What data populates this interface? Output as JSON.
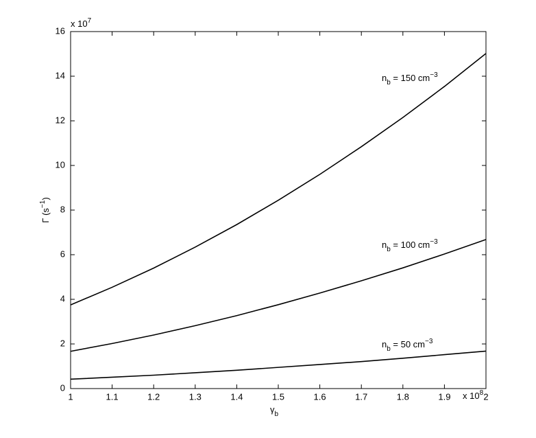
{
  "chart_data": {
    "type": "line",
    "x_label": {
      "base": "γ",
      "sub": "b"
    },
    "y_label": {
      "base": "Γ (s",
      "sup": "−1",
      "end": ")"
    },
    "x_exponent": {
      "text": "x 10",
      "sup": "8"
    },
    "y_exponent": {
      "text": "x 10",
      "sup": "7"
    },
    "x": [
      1,
      1.1,
      1.2,
      1.3,
      1.4,
      1.5,
      1.6,
      1.7,
      1.8,
      1.9,
      2
    ],
    "series": [
      {
        "name": {
          "base": "n",
          "sub": "b",
          "text": " = 150 cm",
          "sup": "−3"
        },
        "color": "#000000",
        "values": [
          3.75,
          4.54,
          5.4,
          6.34,
          7.35,
          8.44,
          9.6,
          10.84,
          12.15,
          13.54,
          15.02
        ]
      },
      {
        "name": {
          "base": "n",
          "sub": "b",
          "text": " = 100 cm",
          "sup": "−3"
        },
        "color": "#000000",
        "values": [
          1.67,
          2.02,
          2.4,
          2.82,
          3.27,
          3.76,
          4.28,
          4.83,
          5.41,
          6.03,
          6.68
        ]
      },
      {
        "name": {
          "base": "n",
          "sub": "b",
          "text": " = 50 cm",
          "sup": "−3"
        },
        "color": "#000000",
        "values": [
          0.42,
          0.51,
          0.6,
          0.71,
          0.82,
          0.95,
          1.08,
          1.21,
          1.36,
          1.52,
          1.68
        ]
      }
    ],
    "xlim": [
      1,
      2
    ],
    "xticks": [
      1,
      1.1,
      1.2,
      1.3,
      1.4,
      1.5,
      1.6,
      1.7,
      1.8,
      1.9,
      2
    ],
    "ylim": [
      0,
      16
    ],
    "yticks": [
      0,
      2,
      4,
      6,
      8,
      10,
      12,
      14,
      16
    ],
    "grid": false
  }
}
